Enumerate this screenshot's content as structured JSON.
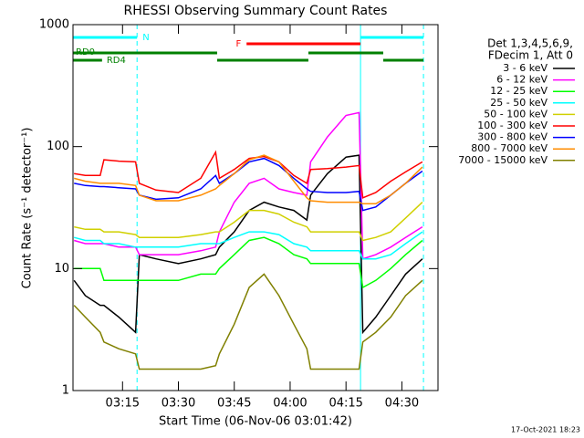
{
  "chart_data": {
    "type": "line",
    "title": "RHESSI Observing Summary Count Rates",
    "xlabel": "Start Time (06-Nov-06 03:01:42)",
    "ylabel": "Count Rate (s⁻¹ detector⁻¹)",
    "footer": "17-Oct-2021 18:23",
    "legend_header": [
      "Det 1,3,4,5,6,9,",
      "FDecim 1, Att 0"
    ],
    "log_y": true,
    "xlim": [
      1.7,
      99.7
    ],
    "xticks": [
      {
        "value": 15,
        "label": "03:15"
      },
      {
        "value": 30,
        "label": "03:30"
      },
      {
        "value": 45,
        "label": "03:45"
      },
      {
        "value": 60,
        "label": "04:00"
      },
      {
        "value": 75,
        "label": "04:15"
      },
      {
        "value": 90,
        "label": "04:30"
      }
    ],
    "ylim": [
      1,
      1000
    ],
    "yticks": [
      1,
      10,
      100,
      1000
    ],
    "x": [
      2,
      5,
      9,
      10,
      14,
      18.5,
      19.5,
      24,
      30,
      36,
      40,
      41,
      45,
      49,
      53,
      57,
      61,
      64.5,
      65.5,
      70,
      75,
      78.5,
      79.5,
      83,
      87,
      91,
      95.5
    ],
    "series": [
      {
        "name": "3 - 6 keV",
        "color": "#000000",
        "values": [
          8,
          6,
          5,
          5,
          4,
          3,
          13,
          12,
          11,
          12,
          13,
          15,
          20,
          30,
          35,
          32,
          30,
          25,
          40,
          60,
          82,
          85,
          3,
          4,
          6,
          9,
          12
        ]
      },
      {
        "name": "6 - 12 keV",
        "color": "#ff00ff",
        "values": [
          17,
          16,
          16,
          16,
          15,
          15,
          13,
          13,
          13,
          14,
          15,
          20,
          35,
          50,
          55,
          45,
          42,
          40,
          75,
          120,
          180,
          190,
          12,
          13,
          15,
          18,
          22
        ]
      },
      {
        "name": "12 - 25 keV",
        "color": "#00ff00",
        "values": [
          10,
          10,
          10,
          8,
          8,
          8,
          8,
          8,
          8,
          9,
          9,
          10,
          13,
          17,
          18,
          16,
          13,
          12,
          11,
          11,
          11,
          11,
          7,
          8,
          10,
          13,
          17
        ]
      },
      {
        "name": "25 - 50 keV",
        "color": "#00ffff",
        "values": [
          18,
          17,
          17,
          16,
          16,
          15,
          15,
          15,
          15,
          16,
          16,
          16,
          18,
          20,
          20,
          19,
          16,
          15,
          14,
          14,
          14,
          14,
          12,
          12,
          13,
          16,
          20
        ]
      },
      {
        "name": "50 - 100 keV",
        "color": "#d0d000",
        "values": [
          22,
          21,
          21,
          20,
          20,
          19,
          18,
          18,
          18,
          19,
          20,
          20,
          24,
          30,
          30,
          28,
          24,
          22,
          20,
          20,
          20,
          20,
          17,
          18,
          20,
          26,
          35
        ]
      },
      {
        "name": "100 - 300 keV",
        "color": "#ff0000",
        "values": [
          60,
          58,
          58,
          78,
          76,
          75,
          50,
          44,
          42,
          55,
          90,
          55,
          65,
          80,
          83,
          75,
          58,
          50,
          65,
          66,
          68,
          70,
          38,
          42,
          52,
          62,
          75
        ]
      },
      {
        "name": "300 - 800 keV",
        "color": "#0000ff",
        "values": [
          50,
          48,
          47,
          47,
          46,
          45,
          40,
          37,
          38,
          45,
          58,
          50,
          60,
          75,
          80,
          70,
          55,
          45,
          43,
          42,
          42,
          43,
          30,
          32,
          40,
          50,
          63
        ]
      },
      {
        "name": "800 - 7000 keV",
        "color": "#ff8c00",
        "values": [
          55,
          52,
          50,
          50,
          50,
          48,
          40,
          36,
          36,
          40,
          45,
          48,
          60,
          78,
          85,
          75,
          52,
          38,
          36,
          35,
          35,
          35,
          34,
          34,
          40,
          50,
          68
        ]
      },
      {
        "name": "7000 - 15000 keV",
        "color": "#808000",
        "values": [
          5,
          4,
          3,
          2.5,
          2.2,
          2,
          1.5,
          1.5,
          1.5,
          1.5,
          1.6,
          2,
          3.5,
          7,
          9,
          6,
          3.5,
          2.2,
          1.5,
          1.5,
          1.5,
          1.5,
          2.5,
          3,
          4,
          6,
          8
        ]
      }
    ],
    "flag_rows": [
      {
        "label": "N",
        "color": "#00ffff",
        "segments": [
          [
            1.7,
            18.9
          ],
          [
            78.9,
            95.8
          ]
        ]
      },
      {
        "label": "F",
        "color": "#ff0000",
        "segments": [
          [
            48.3,
            78.9
          ]
        ]
      },
      {
        "label": "RD0",
        "color": "#008000",
        "segments": [
          [
            1.7,
            40.4
          ],
          [
            64.9,
            85
          ]
        ]
      },
      {
        "label": "RD4",
        "color": "#008000",
        "segments": [
          [
            1.7,
            9.5
          ],
          [
            40.4,
            64.9
          ],
          [
            85,
            95.8
          ]
        ]
      }
    ],
    "vline_color": "#00ffff",
    "vlines": [
      {
        "x": 1.7,
        "dashed": false
      },
      {
        "x": 18.9,
        "dashed": true
      },
      {
        "x": 78.9,
        "dashed": false
      },
      {
        "x": 95.8,
        "dashed": true
      }
    ]
  }
}
